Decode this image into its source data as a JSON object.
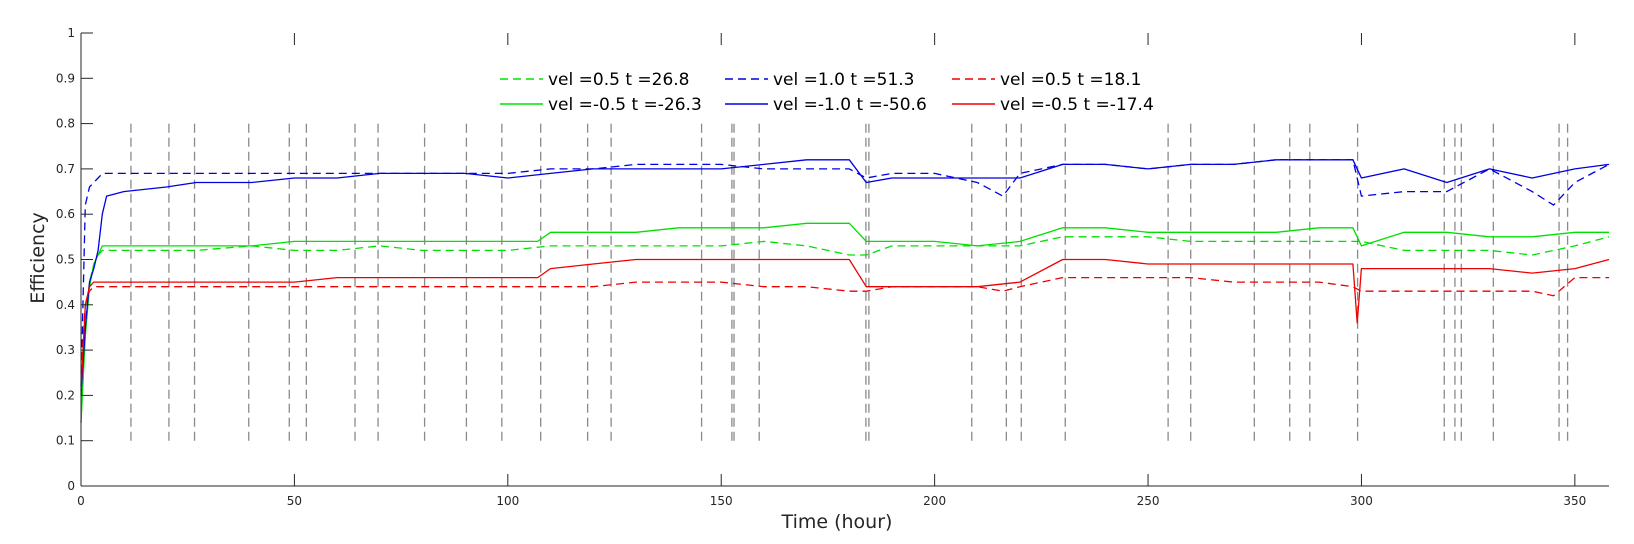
{
  "chart_data": {
    "type": "line",
    "xlabel": "Time (hour)",
    "ylabel": "Efficiency",
    "xlim": [
      0,
      358
    ],
    "ylim": [
      0,
      1
    ],
    "xticks": [
      0,
      50,
      100,
      150,
      200,
      250,
      300,
      350
    ],
    "yticks": [
      0,
      0.1,
      0.2,
      0.3,
      0.4,
      0.5,
      0.6,
      0.7,
      0.8,
      0.9,
      1
    ],
    "grid": false,
    "legend_position": "top-center",
    "events": [
      11.7,
      20.6,
      26.6,
      39.3,
      48.8,
      52.8,
      64.2,
      69.6,
      80.5,
      90.3,
      98.6,
      107.7,
      118.7,
      124.2,
      145.4,
      152.5,
      153.0,
      158.9,
      183.9,
      184.6,
      208.7,
      216.8,
      220.3,
      230.6,
      254.7,
      260.0,
      274.9,
      283.2,
      287.9,
      299.1,
      319.4,
      321.9,
      323.4,
      330.9,
      346.3,
      348.3
    ],
    "events_range": [
      0.1,
      0.8
    ],
    "series": [
      {
        "name": "vel =0.5 t =26.8",
        "color": "#00e000",
        "dash": true,
        "x": [
          0,
          1,
          2,
          3,
          4,
          5,
          10,
          12,
          20,
          27,
          40,
          50,
          60,
          70,
          80,
          90,
          100,
          110,
          120,
          130,
          140,
          150,
          160,
          170,
          180,
          184,
          190,
          200,
          210,
          220,
          230,
          240,
          250,
          260,
          270,
          280,
          290,
          298,
          300,
          310,
          320,
          330,
          340,
          350,
          358
        ],
        "values": [
          0.14,
          0.36,
          0.45,
          0.49,
          0.51,
          0.52,
          0.52,
          0.52,
          0.52,
          0.52,
          0.53,
          0.52,
          0.52,
          0.53,
          0.52,
          0.52,
          0.52,
          0.53,
          0.53,
          0.53,
          0.53,
          0.53,
          0.54,
          0.53,
          0.51,
          0.51,
          0.53,
          0.53,
          0.53,
          0.53,
          0.55,
          0.55,
          0.55,
          0.54,
          0.54,
          0.54,
          0.54,
          0.54,
          0.54,
          0.52,
          0.52,
          0.52,
          0.51,
          0.53,
          0.55
        ]
      },
      {
        "name": "vel =1.0 t =51.3",
        "color": "#0000e0",
        "dash": true,
        "x": [
          0,
          1,
          2,
          3,
          4,
          5,
          10,
          20,
          27,
          40,
          50,
          60,
          70,
          80,
          90,
          100,
          110,
          120,
          130,
          140,
          150,
          160,
          170,
          180,
          184,
          190,
          200,
          210,
          216,
          220,
          230,
          240,
          250,
          260,
          270,
          280,
          290,
          298,
          300,
          310,
          320,
          330,
          340,
          345,
          350,
          358
        ],
        "values": [
          0.22,
          0.62,
          0.66,
          0.67,
          0.68,
          0.69,
          0.69,
          0.69,
          0.69,
          0.69,
          0.69,
          0.69,
          0.69,
          0.69,
          0.69,
          0.69,
          0.7,
          0.7,
          0.71,
          0.71,
          0.71,
          0.7,
          0.7,
          0.7,
          0.68,
          0.69,
          0.69,
          0.67,
          0.64,
          0.69,
          0.71,
          0.71,
          0.7,
          0.71,
          0.71,
          0.72,
          0.72,
          0.72,
          0.64,
          0.65,
          0.65,
          0.7,
          0.65,
          0.62,
          0.67,
          0.71
        ]
      },
      {
        "name": "vel =0.5 t =18.1",
        "color": "#ee0000",
        "dash": true,
        "x": [
          0,
          1,
          2,
          3,
          5,
          10,
          20,
          27,
          40,
          50,
          60,
          70,
          80,
          90,
          100,
          110,
          120,
          130,
          140,
          150,
          160,
          170,
          180,
          184,
          190,
          200,
          210,
          216,
          220,
          230,
          240,
          250,
          260,
          270,
          280,
          290,
          298,
          300,
          310,
          320,
          330,
          340,
          345,
          350,
          358
        ],
        "values": [
          0.25,
          0.4,
          0.43,
          0.44,
          0.44,
          0.44,
          0.44,
          0.44,
          0.44,
          0.44,
          0.44,
          0.44,
          0.44,
          0.44,
          0.44,
          0.44,
          0.44,
          0.45,
          0.45,
          0.45,
          0.44,
          0.44,
          0.43,
          0.43,
          0.44,
          0.44,
          0.44,
          0.43,
          0.44,
          0.46,
          0.46,
          0.46,
          0.46,
          0.45,
          0.45,
          0.45,
          0.44,
          0.43,
          0.43,
          0.43,
          0.43,
          0.43,
          0.42,
          0.46,
          0.46
        ]
      },
      {
        "name": "vel =-0.5 t =-26.3",
        "color": "#00e000",
        "dash": false,
        "x": [
          0,
          1,
          2,
          3,
          4,
          5,
          10,
          20,
          27,
          40,
          50,
          60,
          70,
          80,
          90,
          100,
          107,
          110,
          120,
          130,
          140,
          150,
          160,
          170,
          180,
          184,
          190,
          200,
          210,
          220,
          230,
          240,
          250,
          260,
          270,
          280,
          290,
          298,
          300,
          310,
          320,
          330,
          340,
          350,
          358
        ],
        "values": [
          0.14,
          0.33,
          0.44,
          0.49,
          0.51,
          0.53,
          0.53,
          0.53,
          0.53,
          0.53,
          0.54,
          0.54,
          0.54,
          0.54,
          0.54,
          0.54,
          0.54,
          0.56,
          0.56,
          0.56,
          0.57,
          0.57,
          0.57,
          0.58,
          0.58,
          0.54,
          0.54,
          0.54,
          0.53,
          0.54,
          0.57,
          0.57,
          0.56,
          0.56,
          0.56,
          0.56,
          0.57,
          0.57,
          0.53,
          0.56,
          0.56,
          0.55,
          0.55,
          0.56,
          0.56
        ]
      },
      {
        "name": "vel =-1.0 t =-50.6",
        "color": "#0000e0",
        "dash": false,
        "x": [
          0,
          1,
          2,
          3,
          4,
          5,
          6,
          10,
          20,
          27,
          40,
          50,
          60,
          70,
          80,
          90,
          100,
          110,
          120,
          130,
          140,
          150,
          160,
          170,
          180,
          184,
          190,
          200,
          210,
          220,
          230,
          240,
          250,
          260,
          270,
          280,
          290,
          298,
          300,
          310,
          320,
          330,
          340,
          350,
          358
        ],
        "values": [
          0.2,
          0.35,
          0.45,
          0.48,
          0.52,
          0.6,
          0.64,
          0.65,
          0.66,
          0.67,
          0.67,
          0.68,
          0.68,
          0.69,
          0.69,
          0.69,
          0.68,
          0.69,
          0.7,
          0.7,
          0.7,
          0.7,
          0.71,
          0.72,
          0.72,
          0.67,
          0.68,
          0.68,
          0.68,
          0.68,
          0.71,
          0.71,
          0.7,
          0.71,
          0.71,
          0.72,
          0.72,
          0.72,
          0.68,
          0.7,
          0.67,
          0.7,
          0.68,
          0.7,
          0.71
        ]
      },
      {
        "name": "vel =-0.5 t =-17.4",
        "color": "#ee0000",
        "dash": false,
        "x": [
          0,
          1,
          2,
          3,
          5,
          10,
          20,
          27,
          40,
          50,
          60,
          70,
          80,
          90,
          100,
          107,
          110,
          120,
          130,
          140,
          150,
          160,
          170,
          180,
          184,
          190,
          200,
          210,
          220,
          230,
          240,
          250,
          260,
          270,
          280,
          290,
          298,
          299,
          300,
          310,
          320,
          330,
          340,
          350,
          358
        ],
        "values": [
          0.21,
          0.4,
          0.44,
          0.45,
          0.45,
          0.45,
          0.45,
          0.45,
          0.45,
          0.45,
          0.46,
          0.46,
          0.46,
          0.46,
          0.46,
          0.46,
          0.48,
          0.49,
          0.5,
          0.5,
          0.5,
          0.5,
          0.5,
          0.5,
          0.44,
          0.44,
          0.44,
          0.44,
          0.45,
          0.5,
          0.5,
          0.49,
          0.49,
          0.49,
          0.49,
          0.49,
          0.49,
          0.36,
          0.48,
          0.48,
          0.48,
          0.48,
          0.47,
          0.48,
          0.5
        ]
      }
    ]
  }
}
